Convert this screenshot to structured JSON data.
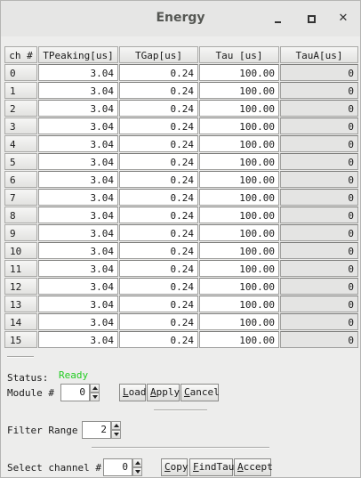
{
  "window": {
    "title": "Energy"
  },
  "table": {
    "headers": [
      "ch #",
      "TPeaking[us]",
      "TGap[us]",
      "Tau [us]",
      "TauA[us]"
    ],
    "rows": [
      {
        "ch": "0",
        "tpeaking": "3.04",
        "tgap": "0.24",
        "tau": "100.00",
        "taua": "0"
      },
      {
        "ch": "1",
        "tpeaking": "3.04",
        "tgap": "0.24",
        "tau": "100.00",
        "taua": "0"
      },
      {
        "ch": "2",
        "tpeaking": "3.04",
        "tgap": "0.24",
        "tau": "100.00",
        "taua": "0"
      },
      {
        "ch": "3",
        "tpeaking": "3.04",
        "tgap": "0.24",
        "tau": "100.00",
        "taua": "0"
      },
      {
        "ch": "4",
        "tpeaking": "3.04",
        "tgap": "0.24",
        "tau": "100.00",
        "taua": "0"
      },
      {
        "ch": "5",
        "tpeaking": "3.04",
        "tgap": "0.24",
        "tau": "100.00",
        "taua": "0"
      },
      {
        "ch": "6",
        "tpeaking": "3.04",
        "tgap": "0.24",
        "tau": "100.00",
        "taua": "0"
      },
      {
        "ch": "7",
        "tpeaking": "3.04",
        "tgap": "0.24",
        "tau": "100.00",
        "taua": "0"
      },
      {
        "ch": "8",
        "tpeaking": "3.04",
        "tgap": "0.24",
        "tau": "100.00",
        "taua": "0"
      },
      {
        "ch": "9",
        "tpeaking": "3.04",
        "tgap": "0.24",
        "tau": "100.00",
        "taua": "0"
      },
      {
        "ch": "10",
        "tpeaking": "3.04",
        "tgap": "0.24",
        "tau": "100.00",
        "taua": "0"
      },
      {
        "ch": "11",
        "tpeaking": "3.04",
        "tgap": "0.24",
        "tau": "100.00",
        "taua": "0"
      },
      {
        "ch": "12",
        "tpeaking": "3.04",
        "tgap": "0.24",
        "tau": "100.00",
        "taua": "0"
      },
      {
        "ch": "13",
        "tpeaking": "3.04",
        "tgap": "0.24",
        "tau": "100.00",
        "taua": "0"
      },
      {
        "ch": "14",
        "tpeaking": "3.04",
        "tgap": "0.24",
        "tau": "100.00",
        "taua": "0"
      },
      {
        "ch": "15",
        "tpeaking": "3.04",
        "tgap": "0.24",
        "tau": "100.00",
        "taua": "0"
      }
    ]
  },
  "status": {
    "label": "Status:",
    "value": "Ready",
    "color": "#22cc22"
  },
  "module": {
    "label": "Module #",
    "value": "0"
  },
  "buttons": {
    "load_pre": "",
    "load_u": "L",
    "load_post": "oad",
    "apply_pre": "",
    "apply_u": "A",
    "apply_post": "pply",
    "cancel_pre": "",
    "cancel_u": "C",
    "cancel_post": "ancel",
    "copy_pre": "",
    "copy_u": "C",
    "copy_post": "opy",
    "findtau_pre": "",
    "findtau_u": "F",
    "findtau_post": "indTau",
    "accept_pre": "",
    "accept_u": "A",
    "accept_post": "ccept"
  },
  "filter": {
    "label": "Filter Range",
    "value": "2"
  },
  "select_channel": {
    "label": "Select channel #",
    "value": "0"
  }
}
